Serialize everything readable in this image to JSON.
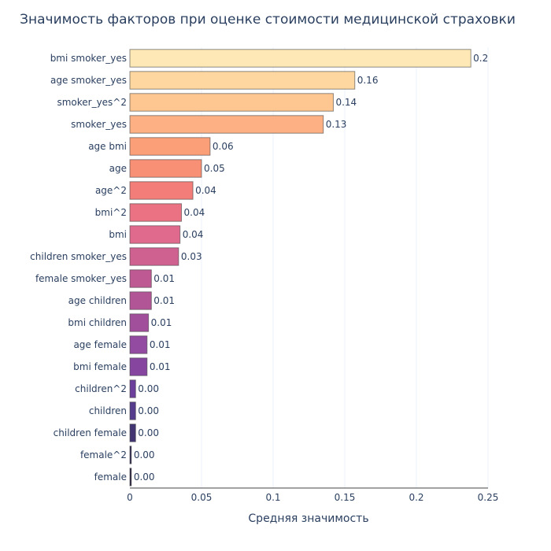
{
  "chart_data": {
    "type": "bar",
    "orientation": "horizontal",
    "title": "Значимость факторов при оценке стоимости медицинской страховки",
    "xlabel": "Средняя значимость",
    "ylabel": "",
    "xlim": [
      0,
      0.25
    ],
    "xticks": [
      "0",
      "0.05",
      "0.1",
      "0.15",
      "0.2",
      "0.25"
    ],
    "grid": true,
    "categories": [
      "bmi smoker_yes",
      "age smoker_yes",
      "smoker_yes^2",
      "smoker_yes",
      "age bmi",
      "age",
      "age^2",
      "bmi^2",
      "bmi",
      "children smoker_yes",
      "female smoker_yes",
      "age children",
      "bmi children",
      "age female",
      "bmi female",
      "children^2",
      "children",
      "children female",
      "female^2",
      "female"
    ],
    "values": [
      0.238,
      0.157,
      0.142,
      0.135,
      0.056,
      0.05,
      0.044,
      0.036,
      0.035,
      0.034,
      0.015,
      0.015,
      0.013,
      0.012,
      0.012,
      0.004,
      0.004,
      0.004,
      0.001,
      0.001
    ],
    "data_labels": [
      "0.2",
      "0.16",
      "0.14",
      "0.13",
      "0.06",
      "0.05",
      "0.04",
      "0.04",
      "0.04",
      "0.03",
      "0.01",
      "0.01",
      "0.01",
      "0.01",
      "0.01",
      "0.00",
      "0.00",
      "0.00",
      "0.00",
      "0.00"
    ],
    "colors": [
      "#fee9b6",
      "#fed69f",
      "#fec690",
      "#fcb083",
      "#fb9f79",
      "#f89075",
      "#f27d79",
      "#ea7282",
      "#e06a8d",
      "#cf6190",
      "#be5993",
      "#b25596",
      "#a24f9b",
      "#934ba1",
      "#8646a0",
      "#6b3f9b",
      "#563c8c",
      "#433574",
      "#2b2553",
      "#231c3d"
    ]
  }
}
